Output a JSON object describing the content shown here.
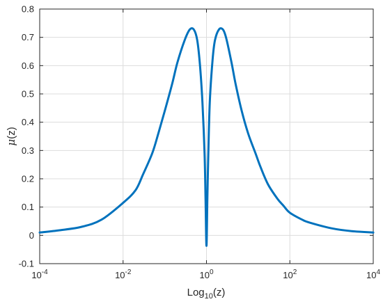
{
  "chart_data": {
    "type": "line",
    "xscale": "log",
    "xlim": [
      0.0001,
      10000
    ],
    "ylim": [
      -0.1,
      0.8
    ],
    "grid": true,
    "xlabel": "Log",
    "xlabel_subscript": "10",
    "xlabel_suffix": "(z)",
    "ylabel_symbol": "μ",
    "ylabel_suffix": "(z)",
    "x_ticks": [
      {
        "value": 0.0001,
        "base": "10",
        "exp": "-4"
      },
      {
        "value": 0.01,
        "base": "10",
        "exp": "-2"
      },
      {
        "value": 1,
        "base": "10",
        "exp": "0"
      },
      {
        "value": 100,
        "base": "10",
        "exp": "2"
      },
      {
        "value": 10000,
        "base": "10",
        "exp": "4"
      }
    ],
    "y_ticks": [
      {
        "value": -0.1,
        "label": "-0.1"
      },
      {
        "value": 0,
        "label": "0"
      },
      {
        "value": 0.1,
        "label": "0.1"
      },
      {
        "value": 0.2,
        "label": "0.2"
      },
      {
        "value": 0.3,
        "label": "0.3"
      },
      {
        "value": 0.4,
        "label": "0.4"
      },
      {
        "value": 0.5,
        "label": "0.5"
      },
      {
        "value": 0.6,
        "label": "0.6"
      },
      {
        "value": 0.7,
        "label": "0.7"
      },
      {
        "value": 0.8,
        "label": "0.8"
      }
    ],
    "series": [
      {
        "color": "#0072bd",
        "x": [
          0.0001,
          0.0003,
          0.001,
          0.003,
          0.01,
          0.02,
          0.03,
          0.05,
          0.07,
          0.1,
          0.15,
          0.2,
          0.3,
          0.4,
          0.5,
          0.6,
          0.7,
          0.8,
          0.9,
          0.95,
          1,
          1.05,
          1.1,
          1.2,
          1.4,
          1.6,
          2,
          2.5,
          3,
          4,
          5,
          7,
          10,
          15,
          20,
          30,
          50,
          70,
          100,
          200,
          300,
          1000,
          3000,
          10000
        ],
        "y": [
          0.01,
          0.018,
          0.03,
          0.055,
          0.115,
          0.16,
          0.215,
          0.29,
          0.36,
          0.44,
          0.535,
          0.61,
          0.69,
          0.728,
          0.727,
          0.69,
          0.6,
          0.47,
          0.29,
          0.13,
          -0.037,
          0.13,
          0.27,
          0.47,
          0.62,
          0.69,
          0.728,
          0.727,
          0.695,
          0.61,
          0.535,
          0.44,
          0.36,
          0.29,
          0.24,
          0.18,
          0.13,
          0.105,
          0.08,
          0.055,
          0.045,
          0.025,
          0.015,
          0.01
        ]
      }
    ]
  }
}
